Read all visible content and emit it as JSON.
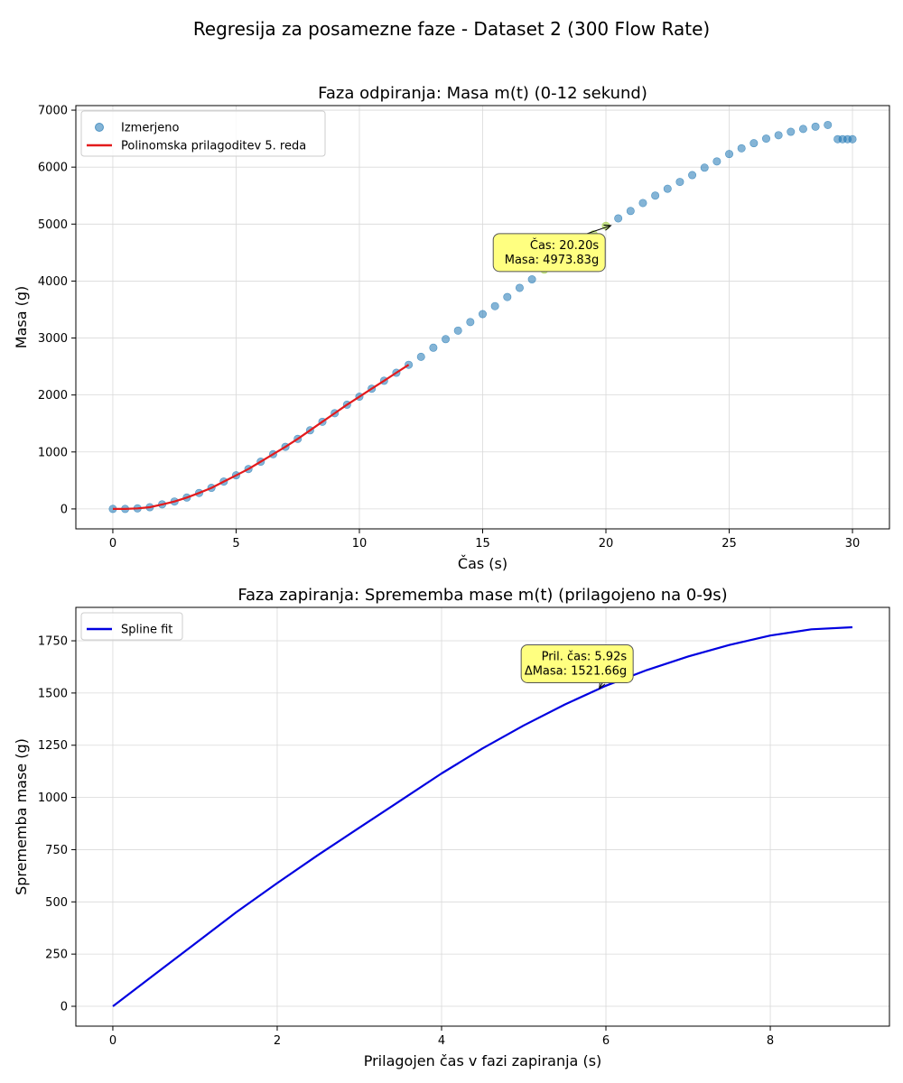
{
  "figure": {
    "suptitle": "Regresija za posamezne faze - Dataset 2 (300 Flow Rate)"
  },
  "chart_data": [
    {
      "type": "scatter",
      "title": "Faza odpiranja: Masa m(t) (0-12 sekund)",
      "xlabel": "Čas (s)",
      "ylabel": "Masa (g)",
      "xlim": [
        -1.5,
        31.5
      ],
      "ylim": [
        -350,
        7080
      ],
      "xticks": [
        0,
        5,
        10,
        15,
        20,
        25,
        30
      ],
      "yticks": [
        0,
        1000,
        2000,
        3000,
        4000,
        5000,
        6000,
        7000
      ],
      "grid": true,
      "legend_position": "top-left",
      "series": [
        {
          "name": "Izmerjeno",
          "kind": "scatter",
          "color": "#1f77b4",
          "x": [
            0.0,
            0.5,
            1.0,
            1.5,
            2.0,
            2.5,
            3.0,
            3.5,
            4.0,
            4.5,
            5.0,
            5.5,
            6.0,
            6.5,
            7.0,
            7.5,
            8.0,
            8.5,
            9.0,
            9.5,
            10.0,
            10.5,
            11.0,
            11.5,
            12.0,
            12.5,
            13.0,
            13.5,
            14.0,
            14.5,
            15.0,
            15.5,
            16.0,
            16.5,
            17.0,
            17.5,
            18.0,
            18.5,
            19.0,
            19.5,
            20.0,
            20.5,
            21.0,
            21.5,
            22.0,
            22.5,
            23.0,
            23.5,
            24.0,
            24.5,
            25.0,
            25.5,
            26.0,
            26.5,
            27.0,
            27.5,
            28.0,
            28.5,
            29.0,
            29.4,
            29.6,
            29.8,
            30.0
          ],
          "y": [
            0,
            0,
            10,
            30,
            80,
            130,
            200,
            280,
            370,
            480,
            590,
            700,
            830,
            960,
            1090,
            1230,
            1380,
            1530,
            1680,
            1830,
            1970,
            2110,
            2250,
            2390,
            2530,
            2670,
            2830,
            2980,
            3130,
            3280,
            3420,
            3560,
            3720,
            3880,
            4030,
            4200,
            4360,
            4510,
            4660,
            4820,
            4970,
            5100,
            5230,
            5370,
            5500,
            5620,
            5740,
            5860,
            5990,
            6100,
            6230,
            6330,
            6420,
            6500,
            6560,
            6620,
            6670,
            6710,
            6740,
            6490,
            6490,
            6490,
            6490
          ]
        },
        {
          "name": "Polinomska prilagoditev 5. reda",
          "kind": "line",
          "color": "#e31a1c",
          "x": [
            0,
            0.5,
            1,
            1.5,
            2,
            2.5,
            3,
            3.5,
            4,
            4.5,
            5,
            5.5,
            6,
            6.5,
            7,
            7.5,
            8,
            8.5,
            9,
            9.5,
            10,
            10.5,
            11,
            11.5,
            12
          ],
          "y": [
            0,
            0,
            10,
            30,
            80,
            130,
            200,
            280,
            370,
            480,
            590,
            700,
            830,
            960,
            1090,
            1230,
            1380,
            1530,
            1680,
            1830,
            1970,
            2110,
            2250,
            2390,
            2530
          ]
        }
      ],
      "highlight": {
        "color": "#9acd32",
        "x_range": [
          17.5,
          20.2
        ]
      },
      "annotation": {
        "x": 20.2,
        "y": 4973.83,
        "text_x": 17.7,
        "text_y": 4500,
        "lines": [
          "Čas: 20.20s",
          "Masa: 4973.83g"
        ]
      }
    },
    {
      "type": "line",
      "title": "Faza zapiranja: Sprememba mase m(t) (prilagojeno na 0-9s)",
      "xlabel": "Prilagojen čas v fazi zapiranja (s)",
      "ylabel": "Sprememba mase (g)",
      "xlim": [
        -0.45,
        9.45
      ],
      "ylim": [
        -95,
        1910
      ],
      "xticks": [
        0,
        2,
        4,
        6,
        8
      ],
      "yticks": [
        0,
        250,
        500,
        750,
        1000,
        1250,
        1500,
        1750
      ],
      "grid": true,
      "legend_position": "top-left",
      "series": [
        {
          "name": "Spline fit",
          "kind": "line",
          "color": "#0000e0",
          "x": [
            0,
            0.5,
            1,
            1.5,
            2,
            2.5,
            3,
            3.5,
            4,
            4.5,
            5,
            5.5,
            6,
            6.5,
            7,
            7.5,
            8,
            8.5,
            9
          ],
          "y": [
            0,
            150,
            300,
            450,
            590,
            725,
            855,
            985,
            1115,
            1235,
            1345,
            1445,
            1535,
            1610,
            1675,
            1730,
            1775,
            1805,
            1815
          ]
        }
      ],
      "annotation": {
        "x": 5.92,
        "y": 1521.66,
        "text_x": 5.65,
        "text_y": 1640,
        "lines": [
          "Pril. čas: 5.92s",
          "ΔMasa: 1521.66g"
        ]
      }
    }
  ]
}
